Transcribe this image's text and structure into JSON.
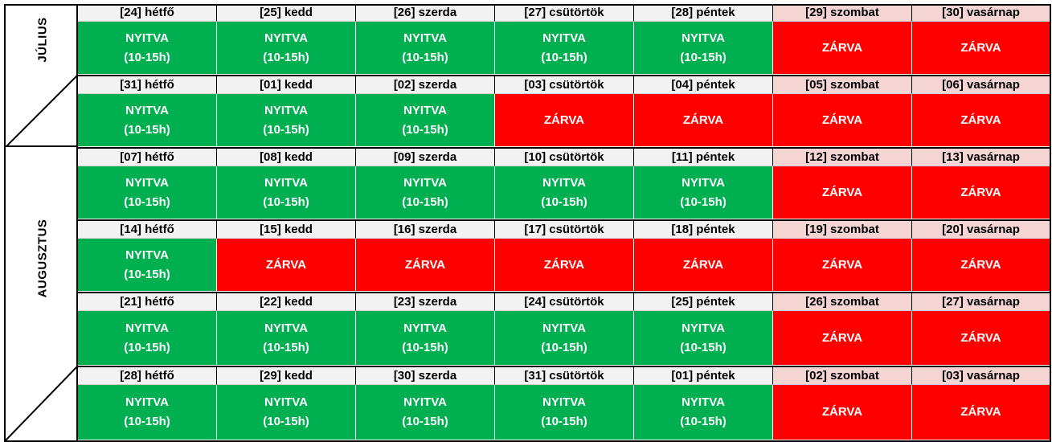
{
  "months": [
    {
      "name": "JÚLIUS"
    },
    {
      "name": "AUGUSZTUS"
    }
  ],
  "status": {
    "open_line1": "NYITVA",
    "open_line2": "(10-15h)",
    "closed": "ZÁRVA"
  },
  "colors": {
    "open": "#00b050",
    "closed": "#ff0000",
    "header": "#f2f2f2",
    "weekend_header": "#f4d5d3"
  },
  "weeks": [
    {
      "days": [
        {
          "label": "[24] hétfő",
          "open": true
        },
        {
          "label": "[25] kedd",
          "open": true
        },
        {
          "label": "[26] szerda",
          "open": true
        },
        {
          "label": "[27] csütörtök",
          "open": true
        },
        {
          "label": "[28] péntek",
          "open": true
        },
        {
          "label": "[29] szombat",
          "open": false
        },
        {
          "label": "[30] vasárnap",
          "open": false
        }
      ]
    },
    {
      "days": [
        {
          "label": "[31] hétfő",
          "open": true
        },
        {
          "label": "[01] kedd",
          "open": true
        },
        {
          "label": "[02] szerda",
          "open": true
        },
        {
          "label": "[03] csütörtök",
          "open": false
        },
        {
          "label": "[04] péntek",
          "open": false
        },
        {
          "label": "[05] szombat",
          "open": false
        },
        {
          "label": "[06] vasárnap",
          "open": false
        }
      ]
    },
    {
      "days": [
        {
          "label": "[07] hétfő",
          "open": true
        },
        {
          "label": "[08] kedd",
          "open": true
        },
        {
          "label": "[09] szerda",
          "open": true
        },
        {
          "label": "[10] csütörtök",
          "open": true
        },
        {
          "label": "[11] péntek",
          "open": true
        },
        {
          "label": "[12] szombat",
          "open": false
        },
        {
          "label": "[13] vasárnap",
          "open": false
        }
      ]
    },
    {
      "days": [
        {
          "label": "[14] hétfő",
          "open": true
        },
        {
          "label": "[15] kedd",
          "open": false
        },
        {
          "label": "[16] szerda",
          "open": false
        },
        {
          "label": "[17] csütörtök",
          "open": false
        },
        {
          "label": "[18] péntek",
          "open": false
        },
        {
          "label": "[19] szombat",
          "open": false
        },
        {
          "label": "[20] vasárnap",
          "open": false
        }
      ]
    },
    {
      "days": [
        {
          "label": "[21] hétfő",
          "open": true
        },
        {
          "label": "[22] kedd",
          "open": true
        },
        {
          "label": "[23] szerda",
          "open": true
        },
        {
          "label": "[24] csütörtök",
          "open": true
        },
        {
          "label": "[25] péntek",
          "open": true
        },
        {
          "label": "[26] szombat",
          "open": false
        },
        {
          "label": "[27] vasárnap",
          "open": false
        }
      ]
    },
    {
      "days": [
        {
          "label": "[28] hétfő",
          "open": true
        },
        {
          "label": "[29] kedd",
          "open": true
        },
        {
          "label": "[30] szerda",
          "open": true
        },
        {
          "label": "[31] csütörtök",
          "open": true
        },
        {
          "label": "[01] péntek",
          "open": true
        },
        {
          "label": "[02] szombat",
          "open": false
        },
        {
          "label": "[03] vasárnap",
          "open": false
        }
      ]
    }
  ]
}
